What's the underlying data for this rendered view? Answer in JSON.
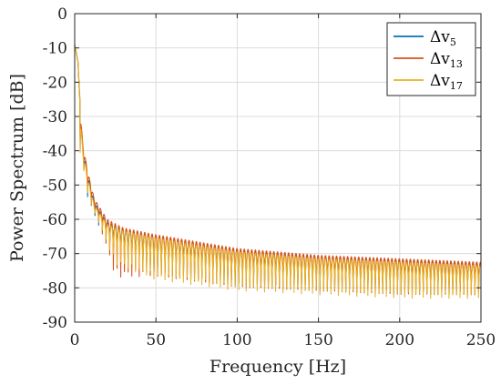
{
  "chart_data": {
    "type": "line",
    "xlabel": "Frequency [Hz]",
    "ylabel": "Power Spectrum [dB]",
    "xlim": [
      0,
      250
    ],
    "ylim": [
      -90,
      0
    ],
    "xticks": [
      0,
      50,
      100,
      150,
      200,
      250
    ],
    "yticks": [
      0,
      -10,
      -20,
      -30,
      -40,
      -50,
      -60,
      -70,
      -80,
      -90
    ],
    "grid": true,
    "legend_position": "top-right",
    "series": [
      {
        "name": "Δv5",
        "name_base": "Δv",
        "name_sub": "5",
        "color": "#0072BD",
        "peak_envelope": [
          [
            0,
            -9
          ],
          [
            2,
            -14
          ],
          [
            4,
            -34
          ],
          [
            5,
            -39
          ],
          [
            8,
            -47
          ],
          [
            12,
            -55
          ],
          [
            20,
            -61
          ],
          [
            30,
            -63
          ],
          [
            50,
            -65
          ],
          [
            75,
            -67
          ],
          [
            100,
            -69
          ],
          [
            125,
            -70
          ],
          [
            150,
            -71
          ],
          [
            175,
            -71.5
          ],
          [
            200,
            -72
          ],
          [
            225,
            -72.5
          ],
          [
            250,
            -73
          ]
        ],
        "trough_envelope": [
          [
            4,
            -42
          ],
          [
            8,
            -55
          ],
          [
            15,
            -63
          ],
          [
            25,
            -72
          ],
          [
            50,
            -78
          ],
          [
            100,
            -82
          ],
          [
            150,
            -83
          ],
          [
            200,
            -84
          ],
          [
            250,
            -84
          ]
        ]
      },
      {
        "name": "Δv13",
        "name_base": "Δv",
        "name_sub": "13",
        "color": "#D95319",
        "peak_envelope": [
          [
            0,
            -9
          ],
          [
            2,
            -14
          ],
          [
            4,
            -32
          ],
          [
            5,
            -38
          ],
          [
            8,
            -46
          ],
          [
            12,
            -54
          ],
          [
            20,
            -60
          ],
          [
            30,
            -62.5
          ],
          [
            50,
            -64.5
          ],
          [
            75,
            -66.5
          ],
          [
            100,
            -68.5
          ],
          [
            125,
            -69.5
          ],
          [
            150,
            -70.5
          ],
          [
            175,
            -71
          ],
          [
            200,
            -71.5
          ],
          [
            225,
            -72
          ],
          [
            250,
            -72.5
          ]
        ],
        "trough_envelope": [
          [
            4,
            -41
          ],
          [
            8,
            -53
          ],
          [
            15,
            -62
          ],
          [
            25,
            -80
          ],
          [
            50,
            -79
          ],
          [
            100,
            -82
          ],
          [
            150,
            -83
          ],
          [
            200,
            -84
          ],
          [
            250,
            -84
          ]
        ]
      },
      {
        "name": "Δv17",
        "name_base": "Δv",
        "name_sub": "17",
        "color": "#EDB120",
        "peak_envelope": [
          [
            0,
            -9
          ],
          [
            2,
            -14
          ],
          [
            4,
            -34
          ],
          [
            5,
            -40
          ],
          [
            8,
            -48
          ],
          [
            12,
            -56
          ],
          [
            20,
            -61.5
          ],
          [
            30,
            -63.5
          ],
          [
            50,
            -65.5
          ],
          [
            75,
            -67.5
          ],
          [
            100,
            -69.5
          ],
          [
            125,
            -70.5
          ],
          [
            150,
            -71.5
          ],
          [
            175,
            -72
          ],
          [
            200,
            -72.5
          ],
          [
            225,
            -73
          ],
          [
            250,
            -73.5
          ]
        ],
        "trough_envelope": [
          [
            4,
            -43
          ],
          [
            8,
            -54
          ],
          [
            15,
            -62
          ],
          [
            25,
            -75
          ],
          [
            50,
            -80
          ],
          [
            100,
            -83
          ],
          [
            150,
            -84
          ],
          [
            200,
            -85
          ],
          [
            250,
            -85
          ]
        ]
      }
    ],
    "ripple_period_hz": 2.27
  }
}
